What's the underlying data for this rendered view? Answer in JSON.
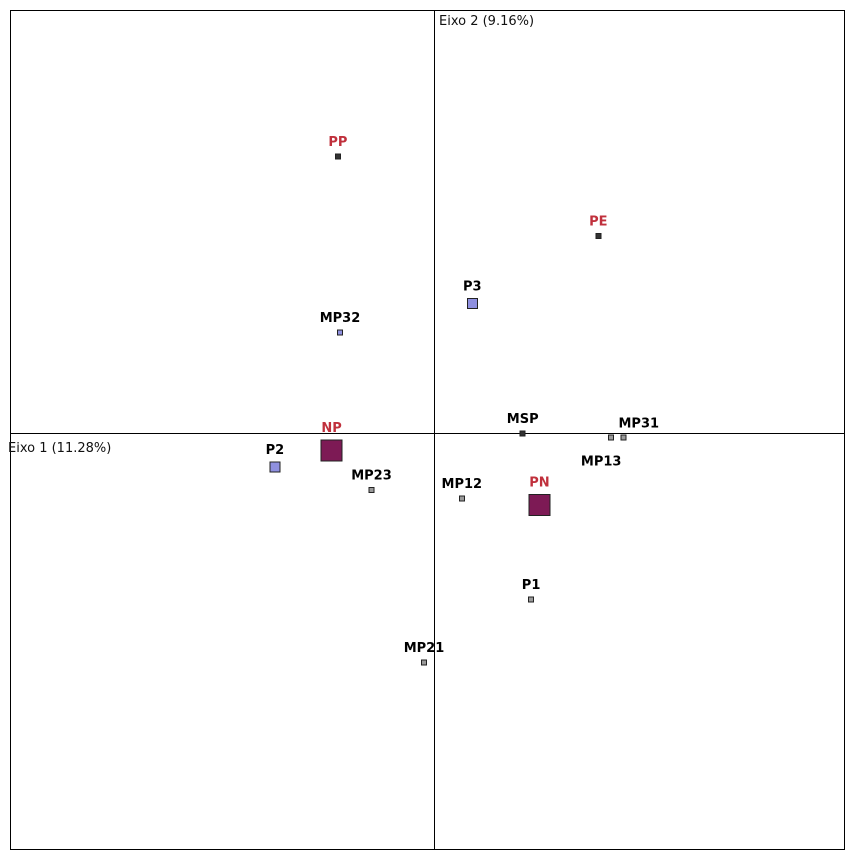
{
  "chart_data": {
    "type": "scatter",
    "axes": {
      "x_title": "Eixo 1 (11.28%)",
      "y_title": "Eixo 2 (9.16%)",
      "xlim": [
        -1.0,
        1.0
      ],
      "ylim": [
        -1.0,
        1.0
      ]
    },
    "grid": false,
    "legend": "none",
    "colors": {
      "black_text": "#000000",
      "red_text": "#c0303c",
      "blue_fill": "#8f90e0",
      "maroon_fill": "#7d1a55",
      "gray_fill": "#9a9a9a",
      "dark_fill": "#333333"
    },
    "points": [
      {
        "label": "PP",
        "x": -0.23,
        "y": 0.66,
        "size": "small",
        "fill": "dark_fill",
        "label_color": "red_text"
      },
      {
        "label": "PE",
        "x": 0.39,
        "y": 0.47,
        "size": "small",
        "fill": "dark_fill",
        "label_color": "red_text"
      },
      {
        "label": "P3",
        "x": 0.09,
        "y": 0.31,
        "size": "medium",
        "fill": "blue_fill",
        "label_color": "black_text"
      },
      {
        "label": "MP32",
        "x": -0.225,
        "y": 0.24,
        "size": "small",
        "fill": "blue_fill",
        "label_color": "black_text"
      },
      {
        "label": "NP",
        "x": -0.245,
        "y": -0.04,
        "size": "large",
        "fill": "maroon_fill",
        "label_color": "red_text"
      },
      {
        "label": "P2",
        "x": -0.38,
        "y": -0.08,
        "size": "medium",
        "fill": "blue_fill",
        "label_color": "black_text"
      },
      {
        "label": "MP23",
        "x": -0.15,
        "y": -0.135,
        "size": "small",
        "fill": "gray_fill",
        "label_color": "black_text"
      },
      {
        "label": "MSP",
        "x": 0.21,
        "y": 0.0,
        "size": "small",
        "fill": "dark_fill",
        "label_color": "black_text"
      },
      {
        "label": "MP31",
        "x": 0.45,
        "y": -0.01,
        "size": "small",
        "fill": "gray_fill",
        "label_color": "black_text"
      },
      {
        "label": "MP13",
        "x": 0.42,
        "y": -0.01,
        "size": "small",
        "fill": "gray_fill",
        "label_color": "black_text"
      },
      {
        "label": "MP12",
        "x": 0.065,
        "y": -0.155,
        "size": "small",
        "fill": "gray_fill",
        "label_color": "black_text"
      },
      {
        "label": "PN",
        "x": 0.25,
        "y": -0.17,
        "size": "large",
        "fill": "maroon_fill",
        "label_color": "red_text"
      },
      {
        "label": "P1",
        "x": 0.23,
        "y": -0.395,
        "size": "small",
        "fill": "gray_fill",
        "label_color": "black_text"
      },
      {
        "label": "MP21",
        "x": -0.025,
        "y": -0.545,
        "size": "small",
        "fill": "gray_fill",
        "label_color": "black_text"
      }
    ]
  }
}
